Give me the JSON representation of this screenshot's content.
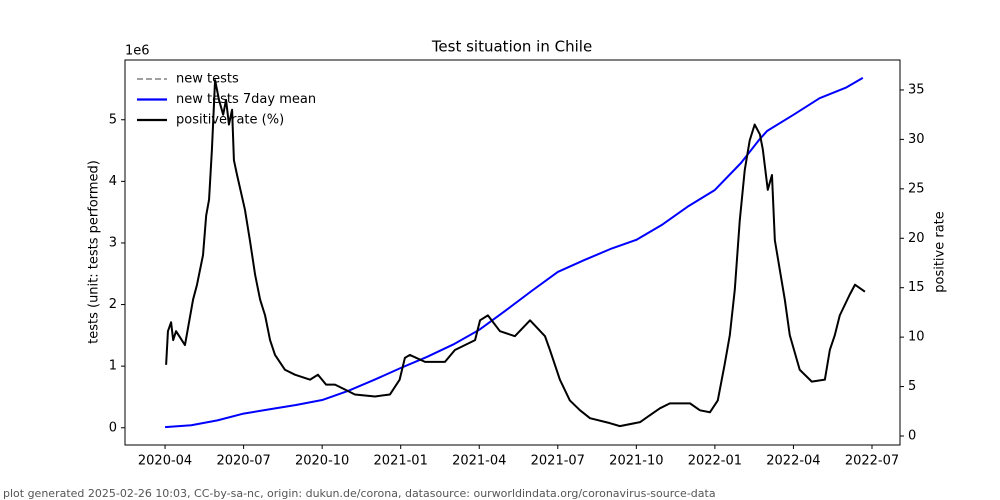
{
  "chart_data": {
    "type": "line",
    "title": "Test situation in Chile",
    "ylabel": "tests (unit: tests performed)",
    "y_offset_label": "1e6",
    "y2label": "positive rate",
    "xlim": [
      1.47,
      31.07
    ],
    "xticks": [
      {
        "value": 3,
        "label": "2020-04"
      },
      {
        "value": 6,
        "label": "2020-07"
      },
      {
        "value": 9,
        "label": "2020-10"
      },
      {
        "value": 12,
        "label": "2021-01"
      },
      {
        "value": 15,
        "label": "2021-04"
      },
      {
        "value": 18,
        "label": "2021-07"
      },
      {
        "value": 21,
        "label": "2021-10"
      },
      {
        "value": 24,
        "label": "2022-01"
      },
      {
        "value": 27,
        "label": "2022-04"
      },
      {
        "value": 30,
        "label": "2022-07"
      }
    ],
    "ylim": [
      -0.28,
      5.97
    ],
    "yticks": [
      0,
      1,
      2,
      3,
      4,
      5
    ],
    "y2lim": [
      -0.91,
      38.03
    ],
    "y2ticks": [
      0,
      5,
      10,
      15,
      20,
      25,
      30,
      35
    ],
    "legend": "upper left",
    "series": [
      {
        "name": "new tests",
        "color": "#808080",
        "linestyle": "dashed",
        "x": [],
        "values": []
      },
      {
        "name": "new tests 7day mean",
        "color": "#0000ff",
        "linestyle": "solid",
        "x": [
          3,
          4,
          5,
          6,
          7,
          8,
          9,
          10,
          11,
          12,
          13,
          14,
          15,
          16,
          17,
          18,
          19,
          20,
          21,
          22,
          23,
          24,
          25,
          25.7,
          26,
          27,
          28,
          29,
          29.65
        ],
        "values": [
          0.01,
          0.04,
          0.12,
          0.23,
          0.3,
          0.37,
          0.45,
          0.6,
          0.78,
          0.97,
          1.15,
          1.35,
          1.59,
          1.9,
          2.22,
          2.53,
          2.72,
          2.9,
          3.05,
          3.3,
          3.6,
          3.86,
          4.3,
          4.68,
          4.82,
          5.08,
          5.35,
          5.52,
          5.68
        ]
      },
      {
        "name": "positive rate (%)",
        "color": "#000000",
        "linestyle": "solid",
        "axis": "y2",
        "x": [
          3.04,
          3.11,
          3.23,
          3.31,
          3.42,
          3.76,
          4.07,
          4.22,
          4.45,
          4.57,
          4.68,
          4.79,
          4.91,
          5.06,
          5.22,
          5.33,
          5.44,
          5.56,
          5.63,
          5.75,
          6.05,
          6.24,
          6.44,
          6.63,
          6.82,
          7.01,
          7.2,
          7.58,
          7.96,
          8.54,
          8.84,
          9.15,
          9.49,
          9.87,
          10.25,
          11.02,
          11.59,
          11.96,
          12.16,
          12.35,
          12.93,
          13.69,
          14.07,
          14.84,
          15.03,
          15.33,
          15.79,
          16.36,
          16.94,
          17.51,
          17.7,
          18.08,
          18.46,
          18.85,
          19.23,
          19.99,
          20.37,
          21.14,
          21.52,
          21.9,
          22.28,
          23.05,
          23.43,
          23.81,
          24.11,
          24.37,
          24.57,
          24.76,
          24.95,
          25.14,
          25.33,
          25.52,
          25.72,
          25.83,
          25.95,
          26.02,
          26.18,
          26.29,
          26.48,
          26.67,
          26.86,
          27.24,
          27.7,
          28.2,
          28.39,
          28.58,
          28.77,
          29.15,
          29.35,
          29.73
        ],
        "values": [
          7.2,
          10.6,
          11.5,
          9.7,
          10.6,
          9.2,
          13.8,
          15.3,
          18.3,
          22.3,
          23.9,
          29.0,
          36.0,
          34.0,
          32.5,
          34.0,
          31.5,
          33.0,
          27.9,
          26.4,
          22.9,
          19.8,
          16.3,
          13.8,
          12.2,
          9.7,
          8.2,
          6.7,
          6.2,
          5.7,
          6.2,
          5.2,
          5.2,
          4.7,
          4.2,
          4.0,
          4.2,
          5.7,
          7.9,
          8.2,
          7.5,
          7.5,
          8.7,
          9.7,
          11.7,
          12.2,
          10.6,
          10.1,
          11.7,
          10.1,
          8.7,
          5.7,
          3.6,
          2.6,
          1.8,
          1.3,
          1.0,
          1.4,
          2.1,
          2.8,
          3.3,
          3.3,
          2.6,
          2.4,
          3.6,
          7.2,
          10.2,
          14.8,
          21.8,
          26.9,
          29.9,
          31.5,
          30.5,
          29.0,
          26.4,
          24.9,
          26.4,
          19.8,
          16.8,
          13.8,
          10.2,
          6.7,
          5.5,
          5.7,
          8.7,
          10.2,
          12.2,
          14.3,
          15.3,
          14.6
        ]
      }
    ]
  },
  "footer": "plot generated 2025-02-26 10:03, CC-by-sa-nc, origin: dukun.de/corona, datasource: ourworldindata.org/coronavirus-source-data"
}
